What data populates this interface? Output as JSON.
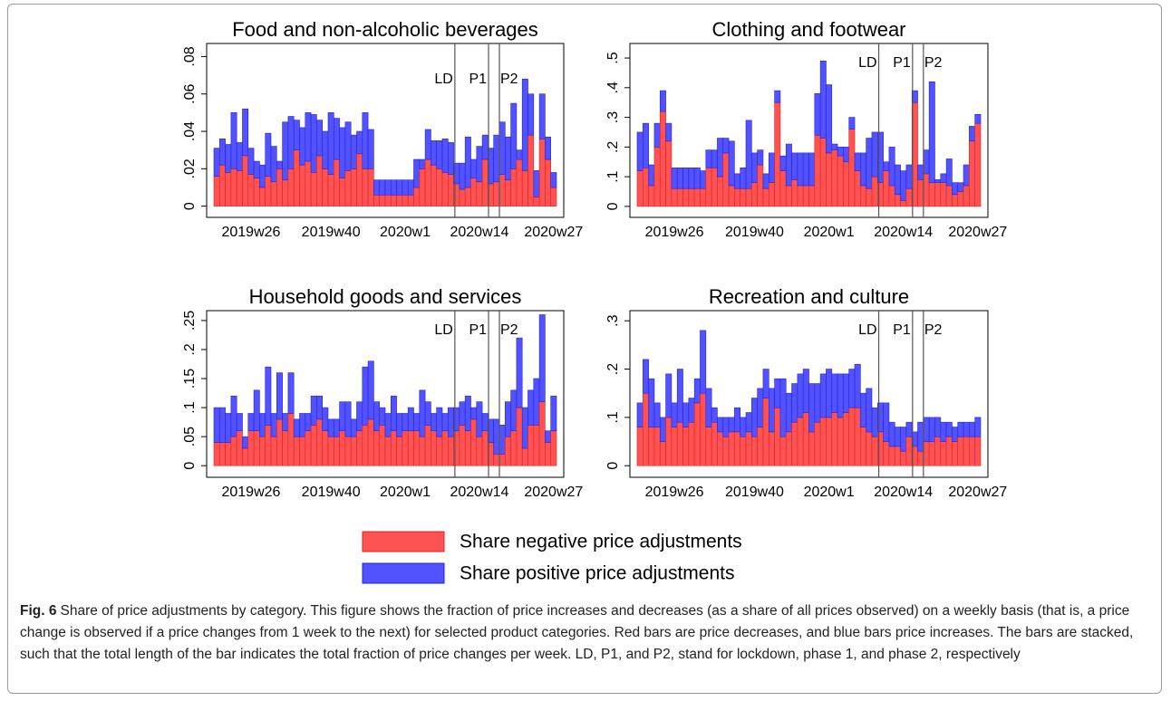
{
  "chart_data": [
    {
      "type": "stacked-bar",
      "title": "Food and non-alcoholic beverages",
      "categories": [
        null,
        null,
        null,
        null,
        null,
        null,
        "2019w26",
        null,
        null,
        null,
        null,
        null,
        null,
        null,
        null,
        null,
        null,
        null,
        null,
        null,
        "2019w40",
        null,
        null,
        null,
        null,
        null,
        null,
        null,
        null,
        null,
        null,
        null,
        null,
        "2020w1",
        null,
        null,
        null,
        null,
        null,
        null,
        null,
        null,
        null,
        null,
        null,
        null,
        "2020w14",
        null,
        null,
        null,
        null,
        null,
        null,
        null,
        null,
        null,
        null,
        null,
        null,
        "2020w27"
      ],
      "ylim": [
        -0.006,
        0.087
      ],
      "yticks": [
        0,
        {
          "value": 0.02,
          "label": ".02"
        },
        {
          "value": 0.04,
          "label": ".04"
        },
        {
          "value": 0.06,
          "label": ".06"
        },
        {
          "value": 0.08,
          "label": ".08"
        }
      ],
      "vlines": [
        {
          "label": "LD",
          "x": 41.7
        },
        {
          "label": "P1",
          "x": 47.6
        },
        {
          "label": "P2",
          "x": 49.5
        }
      ],
      "series": [
        {
          "name": "Share negative price adjustments",
          "color": "#ff5252",
          "values": [
            0.016,
            0.022,
            0.018,
            0.02,
            0.019,
            0.027,
            0.017,
            0.015,
            0.01,
            0.016,
            0.013,
            0.02,
            0.014,
            0.02,
            0.03,
            0.022,
            0.024,
            0.018,
            0.027,
            0.02,
            0.017,
            0.025,
            0.015,
            0.019,
            0.02,
            0.028,
            0.02,
            0.02,
            0.006,
            0.006,
            0.006,
            0.006,
            0.006,
            0.006,
            0.006,
            0.01,
            0.02,
            0.025,
            0.022,
            0.02,
            0.018,
            0.017,
            0.012,
            0.009,
            0.01,
            0.015,
            0.013,
            0.025,
            0.012,
            0.013,
            0.017,
            0.014,
            0.02,
            0.025,
            0.019,
            0.038,
            0.005,
            0.036,
            0.025,
            0.01
          ]
        },
        {
          "name": "Share positive price adjustments",
          "color": "#5252ff",
          "values": [
            0.015,
            0.014,
            0.015,
            0.03,
            0.015,
            0.025,
            0.014,
            0.009,
            0.012,
            0.023,
            0.019,
            0.004,
            0.031,
            0.028,
            0.016,
            0.02,
            0.026,
            0.031,
            0.019,
            0.02,
            0.033,
            0.022,
            0.027,
            0.026,
            0.018,
            0.012,
            0.03,
            0.021,
            0.008,
            0.008,
            0.008,
            0.008,
            0.008,
            0.008,
            0.008,
            0.015,
            0.005,
            0.016,
            0.013,
            0.015,
            0.018,
            0.017,
            0.011,
            0.014,
            0.027,
            0.01,
            0.019,
            0.013,
            0.019,
            0.025,
            0.028,
            0.023,
            0.035,
            0.005,
            0.049,
            0.022,
            0.014,
            0.024,
            0.012,
            0.008
          ]
        }
      ]
    },
    {
      "type": "stacked-bar",
      "title": "Clothing and footwear",
      "categories": [
        null,
        null,
        null,
        null,
        null,
        null,
        "2019w26",
        null,
        null,
        null,
        null,
        null,
        null,
        null,
        null,
        null,
        null,
        null,
        null,
        null,
        "2019w40",
        null,
        null,
        null,
        null,
        null,
        null,
        null,
        null,
        null,
        null,
        null,
        null,
        "2020w1",
        null,
        null,
        null,
        null,
        null,
        null,
        null,
        null,
        null,
        null,
        null,
        null,
        "2020w14",
        null,
        null,
        null,
        null,
        null,
        null,
        null,
        null,
        null,
        null,
        null,
        null,
        "2020w27"
      ],
      "ylim": [
        -0.037,
        0.549
      ],
      "yticks": [
        0,
        {
          "value": 0.1,
          "label": ".1"
        },
        {
          "value": 0.2,
          "label": ".2"
        },
        {
          "value": 0.3,
          "label": ".3"
        },
        {
          "value": 0.4,
          "label": ".4"
        },
        {
          "value": 0.5,
          "label": ".5"
        }
      ],
      "vlines": [
        {
          "label": "LD",
          "x": 41.7
        },
        {
          "label": "P1",
          "x": 47.6
        },
        {
          "label": "P2",
          "x": 49.5
        }
      ],
      "series": [
        {
          "name": "Share negative price adjustments",
          "color": "#ff5252",
          "values": [
            0.12,
            0.13,
            0.07,
            0.2,
            0.32,
            0.22,
            0.06,
            0.06,
            0.06,
            0.06,
            0.06,
            0.06,
            0.13,
            0.13,
            0.1,
            0.18,
            0.07,
            0.06,
            0.06,
            0.06,
            0.08,
            0.14,
            0.06,
            0.08,
            0.35,
            0.12,
            0.07,
            0.09,
            0.07,
            0.07,
            0.07,
            0.24,
            0.23,
            0.18,
            0.19,
            0.17,
            0.15,
            0.26,
            0.12,
            0.07,
            0.06,
            0.1,
            0.08,
            0.12,
            0.07,
            0.04,
            0.02,
            0.06,
            0.35,
            0.09,
            0.11,
            0.08,
            0.08,
            0.08,
            0.07,
            0.04,
            0.05,
            0.07,
            0.22,
            0.28
          ]
        },
        {
          "name": "Share positive price adjustments",
          "color": "#5252ff",
          "values": [
            0.13,
            0.15,
            0.07,
            0.08,
            0.07,
            0.06,
            0.07,
            0.07,
            0.07,
            0.07,
            0.07,
            0.06,
            0.06,
            0.06,
            0.13,
            0.05,
            0.15,
            0.05,
            0.07,
            0.23,
            0.1,
            0.05,
            0.05,
            0.1,
            0.04,
            0.05,
            0.14,
            0.09,
            0.11,
            0.11,
            0.11,
            0.14,
            0.26,
            0.23,
            0.02,
            0.03,
            0.05,
            0.04,
            0.06,
            0.11,
            0.17,
            0.15,
            0.17,
            0.03,
            0.13,
            0.1,
            0.1,
            0.08,
            0.04,
            0.05,
            0.08,
            0.34,
            0.01,
            0.03,
            0.09,
            0.04,
            0.03,
            0.07,
            0.05,
            0.03
          ]
        }
      ]
    },
    {
      "type": "stacked-bar",
      "title": "Household goods and services",
      "categories": [
        null,
        null,
        null,
        null,
        null,
        null,
        "2019w26",
        null,
        null,
        null,
        null,
        null,
        null,
        null,
        null,
        null,
        null,
        null,
        null,
        null,
        "2019w40",
        null,
        null,
        null,
        null,
        null,
        null,
        null,
        null,
        null,
        null,
        null,
        null,
        "2020w1",
        null,
        null,
        null,
        null,
        null,
        null,
        null,
        null,
        null,
        null,
        null,
        null,
        "2020w14",
        null,
        null,
        null,
        null,
        null,
        null,
        null,
        null,
        null,
        null,
        null,
        null,
        "2020w27"
      ],
      "ylim": [
        -0.02,
        0.267
      ],
      "yticks": [
        0,
        {
          "value": 0.05,
          "label": ".05"
        },
        {
          "value": 0.1,
          "label": ".1"
        },
        {
          "value": 0.15,
          "label": ".15"
        },
        {
          "value": 0.2,
          "label": ".2"
        },
        {
          "value": 0.25,
          "label": ".25"
        }
      ],
      "vlines": [
        {
          "label": "LD",
          "x": 41.7
        },
        {
          "label": "P1",
          "x": 47.6
        },
        {
          "label": "P2",
          "x": 49.5
        }
      ],
      "series": [
        {
          "name": "Share negative price adjustments",
          "color": "#ff5252",
          "values": [
            0.04,
            0.04,
            0.04,
            0.05,
            0.06,
            0.03,
            0.06,
            0.06,
            0.05,
            0.07,
            0.05,
            0.08,
            0.06,
            0.09,
            0.05,
            0.05,
            0.06,
            0.07,
            0.08,
            0.06,
            0.05,
            0.05,
            0.06,
            0.05,
            0.05,
            0.06,
            0.07,
            0.08,
            0.06,
            0.07,
            0.05,
            0.06,
            0.05,
            0.06,
            0.06,
            0.06,
            0.05,
            0.07,
            0.06,
            0.05,
            0.06,
            0.05,
            0.06,
            0.07,
            0.06,
            0.08,
            0.05,
            0.06,
            0.04,
            0.02,
            0.02,
            0.05,
            0.06,
            0.1,
            0.03,
            0.07,
            0.07,
            0.11,
            0.04,
            0.06
          ]
        },
        {
          "name": "Share positive price adjustments",
          "color": "#5252ff",
          "values": [
            0.06,
            0.06,
            0.05,
            0.07,
            0.03,
            0.02,
            0.03,
            0.07,
            0.04,
            0.1,
            0.04,
            0.08,
            0.03,
            0.07,
            0.03,
            0.04,
            0.03,
            0.05,
            0.04,
            0.04,
            0.03,
            0.03,
            0.05,
            0.06,
            0.03,
            0.05,
            0.1,
            0.1,
            0.05,
            0.03,
            0.04,
            0.06,
            0.04,
            0.03,
            0.04,
            0.03,
            0.08,
            0.04,
            0.03,
            0.05,
            0.03,
            0.05,
            0.04,
            0.04,
            0.06,
            0.02,
            0.06,
            0.03,
            0.04,
            0.06,
            0.05,
            0.06,
            0.07,
            0.12,
            0.07,
            0.06,
            0.08,
            0.15,
            0.02,
            0.06
          ]
        }
      ]
    },
    {
      "type": "stacked-bar",
      "title": "Recreation and culture",
      "categories": [
        null,
        null,
        null,
        null,
        null,
        null,
        "2019w26",
        null,
        null,
        null,
        null,
        null,
        null,
        null,
        null,
        null,
        null,
        null,
        null,
        null,
        "2019w40",
        null,
        null,
        null,
        null,
        null,
        null,
        null,
        null,
        null,
        null,
        null,
        null,
        "2020w1",
        null,
        null,
        null,
        null,
        null,
        null,
        null,
        null,
        null,
        null,
        null,
        null,
        "2020w14",
        null,
        null,
        null,
        null,
        null,
        null,
        null,
        null,
        null,
        null,
        null,
        null,
        "2020w27"
      ],
      "ylim": [
        -0.024,
        0.321
      ],
      "yticks": [
        0,
        {
          "value": 0.1,
          "label": ".1"
        },
        {
          "value": 0.2,
          "label": ".2"
        },
        {
          "value": 0.3,
          "label": ".3"
        }
      ],
      "vlines": [
        {
          "label": "LD",
          "x": 41.7
        },
        {
          "label": "P1",
          "x": 47.6
        },
        {
          "label": "P2",
          "x": 49.5
        }
      ],
      "series": [
        {
          "name": "Share negative price adjustments",
          "color": "#ff5252",
          "values": [
            0.08,
            0.15,
            0.08,
            0.08,
            0.05,
            0.1,
            0.08,
            0.09,
            0.08,
            0.09,
            0.13,
            0.15,
            0.08,
            0.09,
            0.07,
            0.06,
            0.07,
            0.07,
            0.06,
            0.07,
            0.06,
            0.08,
            0.14,
            0.07,
            0.12,
            0.06,
            0.07,
            0.09,
            0.1,
            0.11,
            0.07,
            0.09,
            0.1,
            0.1,
            0.11,
            0.1,
            0.11,
            0.12,
            0.12,
            0.08,
            0.07,
            0.06,
            0.07,
            0.05,
            0.04,
            0.04,
            0.03,
            0.06,
            0.04,
            0.03,
            0.05,
            0.05,
            0.06,
            0.05,
            0.06,
            0.05,
            0.06,
            0.06,
            0.06,
            0.06
          ]
        },
        {
          "name": "Share positive price adjustments",
          "color": "#5252ff",
          "values": [
            0.05,
            0.07,
            0.1,
            0.05,
            0.05,
            0.09,
            0.05,
            0.11,
            0.05,
            0.05,
            0.05,
            0.13,
            0.08,
            0.03,
            0.03,
            0.04,
            0.03,
            0.05,
            0.04,
            0.04,
            0.08,
            0.08,
            0.06,
            0.09,
            0.06,
            0.12,
            0.08,
            0.08,
            0.09,
            0.09,
            0.1,
            0.08,
            0.09,
            0.1,
            0.08,
            0.09,
            0.08,
            0.08,
            0.09,
            0.07,
            0.09,
            0.06,
            0.06,
            0.08,
            0.05,
            0.04,
            0.05,
            0.03,
            0.03,
            0.06,
            0.05,
            0.05,
            0.04,
            0.04,
            0.03,
            0.03,
            0.03,
            0.03,
            0.03,
            0.04
          ]
        }
      ]
    }
  ],
  "caption": {
    "label": "Fig. 6",
    "text": "Share of price adjustments by category. This figure shows the fraction of price increases and decreases (as a share of all prices observed) on a weekly basis (that is, a price change is observed if a price changes from 1 week to the next) for selected product categories. Red bars are price decreases, and blue bars price increases. The bars are stacked, such that the total length of the bar indicates the total fraction of price changes per week. LD, P1, and P2, stand for lockdown, phase 1, and phase 2, respectively"
  }
}
